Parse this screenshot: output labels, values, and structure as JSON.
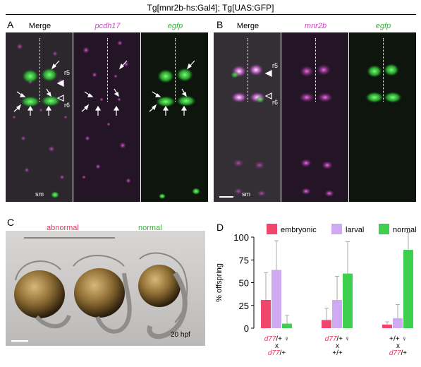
{
  "figure": {
    "title": "Tg[mnr2b-hs:Gal4]; Tg[UAS:GFP]",
    "panels": {
      "A": {
        "label": "A",
        "columns": [
          "Merge",
          "pcdh17",
          "egfp"
        ],
        "annotations": {
          "r5": "r5",
          "r6": "r6",
          "sm": "sm"
        }
      },
      "B": {
        "label": "B",
        "columns": [
          "Merge",
          "mnr2b",
          "egfp"
        ],
        "annotations": {
          "r5": "r5",
          "r6": "r6",
          "sm": "sm"
        }
      },
      "C": {
        "label": "C",
        "abnormal": "abnormal",
        "normal": "normal",
        "stage": "20 hpf"
      },
      "D": {
        "label": "D"
      }
    },
    "colors": {
      "magenta_text": "#d63fd0",
      "green_text": "#38b23a",
      "abnormal_text": "#e8365f",
      "embryonic": "#f0456d",
      "larval": "#cfaaf2",
      "normal": "#3fcf4f",
      "error": "#aaaaaa"
    }
  },
  "chart_data": {
    "type": "bar",
    "ylabel": "% offspring",
    "ylim": [
      0,
      100
    ],
    "yticks": [
      0,
      25,
      50,
      75,
      100
    ],
    "legend_position": "top",
    "categories": [
      {
        "top": "d77/+ ♀",
        "mid": "x",
        "bottom": "d77/+"
      },
      {
        "top": "d77/+ ♀",
        "mid": "x",
        "bottom": "+/+"
      },
      {
        "top": "+/+ ♀",
        "mid": "x",
        "bottom": "d77/+"
      }
    ],
    "series": [
      {
        "name": "embryonic",
        "color": "#f0456d",
        "values": [
          31,
          9,
          4
        ],
        "errors": [
          30,
          13,
          3
        ]
      },
      {
        "name": "larval",
        "color": "#cfaaf2",
        "values": [
          64,
          31,
          11
        ],
        "errors": [
          32,
          26,
          15
        ]
      },
      {
        "name": "normal",
        "color": "#3fcf4f",
        "values": [
          5,
          60,
          86
        ],
        "errors": [
          9,
          35,
          19
        ]
      }
    ]
  }
}
